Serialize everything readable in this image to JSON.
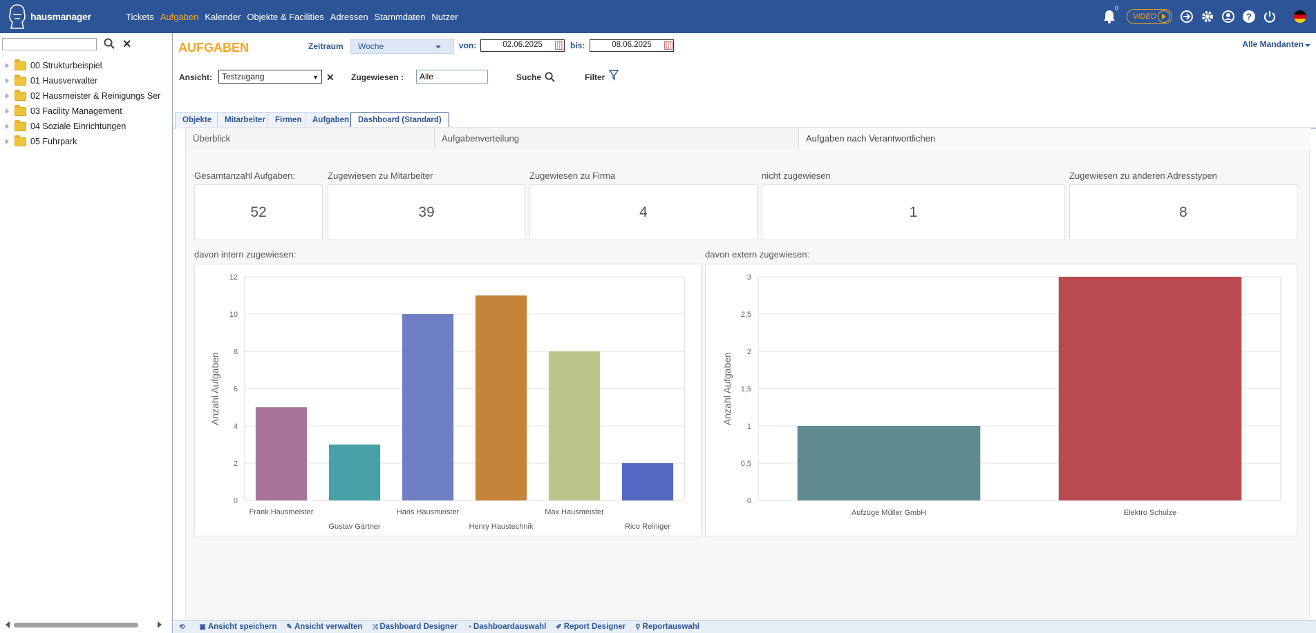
{
  "app": {
    "logo_text": "hausmanager",
    "nav": [
      "Tickets",
      "Aufgaben",
      "Kalender",
      "Objekte & Facilities",
      "Adressen",
      "Stammdaten",
      "Nutzer"
    ],
    "active_nav": "Aufgaben",
    "notification_count": "0",
    "video_label": "VIDEO",
    "colors": {
      "header": "#2c5597",
      "accent": "#f5a623"
    },
    "icons": [
      "bell-icon",
      "video-icon",
      "login-icon",
      "gear-icon",
      "user-icon",
      "help-icon",
      "power-icon",
      "german-flag-icon"
    ]
  },
  "sidebar": {
    "search_value": "",
    "items": [
      {
        "label": "00 Strukturbeispiel"
      },
      {
        "label": "01 Hausverwalter"
      },
      {
        "label": "02 Hausmeister & Reinigungs Ser"
      },
      {
        "label": "03 Facility Management"
      },
      {
        "label": "04 Soziale Einrichtungen"
      },
      {
        "label": "05 Fuhrpark"
      }
    ]
  },
  "header": {
    "title": "AUFGABEN",
    "zeitraum_label": "Zeitraum",
    "zeitraum_value": "Woche",
    "von_label": "von:",
    "von_value": "02.06.2025",
    "bis_label": "bis:",
    "bis_value": "08.06.2025",
    "mandanten": "Alle Mandanten",
    "ansicht_label": "Ansicht:",
    "ansicht_value": "Testzugang",
    "zugewiesen_label": "Zugewiesen :",
    "zugewiesen_value": "Alle",
    "suche_label": "Suche",
    "filter_label": "Filter"
  },
  "tabs": [
    "Objekte",
    "Mitarbeiter",
    "Firmen",
    "Aufgaben",
    "Dashboard (Standard)"
  ],
  "active_tab": "Dashboard (Standard)",
  "dashboard": {
    "tabs": [
      "Überblick",
      "Aufgabenverteilung",
      "Aufgaben nach Verantwortlichen"
    ],
    "active_tab": "Aufgaben nach Verantwortlichen",
    "kpis": [
      {
        "label": "Gesamtanzahl Aufgaben:",
        "value": "52"
      },
      {
        "label": "Zugewiesen zu Mitarbeiter",
        "value": "39"
      },
      {
        "label": "Zugewiesen zu Firma",
        "value": "4"
      },
      {
        "label": "nicht zugewiesen",
        "value": "1"
      },
      {
        "label": "Zugewiesen zu anderen Adresstypen",
        "value": "8"
      }
    ],
    "intern_label": "davon intern zugewiesen:",
    "extern_label": "davon extern zugewiesen:"
  },
  "chart_data": [
    {
      "type": "bar",
      "title": "",
      "xlabel": "",
      "ylabel": "Anzahl Aufgaben",
      "categories": [
        "Frank Hausmeister",
        "Gustav Gärtner",
        "Hans Hausmeister",
        "Henry Haustechnik",
        "Max Hausmeister",
        "Rico Reiniger"
      ],
      "values": [
        5,
        3,
        10,
        11,
        8,
        2
      ],
      "colors": [
        "#a67599",
        "#48a0a7",
        "#6f7fc4",
        "#c4843a",
        "#bbc48a",
        "#5468c2"
      ],
      "ylim": [
        0,
        12
      ],
      "yticks": [
        "0",
        "2",
        "4",
        "6",
        "8",
        "10",
        "12"
      ],
      "grid": true
    },
    {
      "type": "bar",
      "title": "",
      "xlabel": "",
      "ylabel": "Anzahl Aufgaben",
      "categories": [
        "Aufzüge Müller GmbH",
        "Elektro Schulze"
      ],
      "values": [
        1,
        3
      ],
      "colors": [
        "#5f8a92",
        "#b84a50"
      ],
      "ylim": [
        0,
        3
      ],
      "yticks": [
        "0",
        "0,5",
        "1",
        "1,5",
        "2",
        "2,5",
        "3"
      ],
      "grid": true
    }
  ],
  "footer": [
    "Ansicht speichern",
    "Ansicht verwalten",
    "Dashboard Designer",
    "Dashboardauswahl",
    "Report Designer",
    "Reportauswahl"
  ]
}
